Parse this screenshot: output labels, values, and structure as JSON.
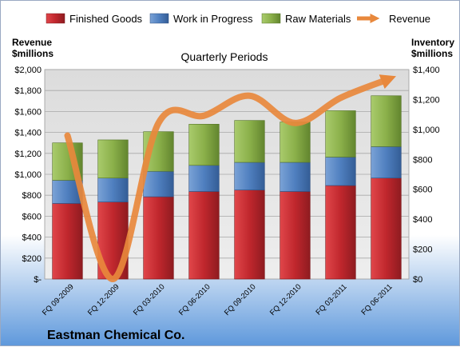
{
  "chart_data": {
    "type": "bar",
    "title": "Quarterly Periods",
    "footer": "Eastman Chemical Co.",
    "categories": [
      "FQ 09-2009",
      "FQ 12-2009",
      "FQ 03-2010",
      "FQ 06-2010",
      "FQ 09-2010",
      "FQ 12-2010",
      "FQ 03-2011",
      "FQ 06-2011"
    ],
    "series": [
      {
        "name": "Finished Goods",
        "kind": "stacked-bar",
        "axis": "right",
        "color": "#c0272d",
        "values": [
          505,
          515,
          550,
          585,
          595,
          585,
          625,
          675
        ]
      },
      {
        "name": "Work in Progress",
        "kind": "stacked-bar",
        "axis": "right",
        "color": "#4f7fbf",
        "values": [
          155,
          160,
          170,
          175,
          185,
          195,
          190,
          210
        ]
      },
      {
        "name": "Raw Materials",
        "kind": "stacked-bar",
        "axis": "right",
        "color": "#8bb04a",
        "values": [
          250,
          255,
          265,
          275,
          280,
          270,
          310,
          340
        ]
      },
      {
        "name": "Revenue",
        "kind": "line",
        "axis": "left",
        "color": "#e8883c",
        "values": [
          1370,
          0,
          1490,
          1560,
          1750,
          1490,
          1730,
          1900
        ]
      }
    ],
    "left_axis": {
      "label": "Revenue $millions",
      "label_lines": [
        "Revenue",
        "$millions"
      ],
      "range": [
        0,
        2000
      ],
      "step": 200,
      "ticks": [
        "$-",
        "$200",
        "$400",
        "$600",
        "$800",
        "$1,000",
        "$1,200",
        "$1,400",
        "$1,600",
        "$1,800",
        "$2,000"
      ]
    },
    "right_axis": {
      "label": "Inventory $millions",
      "label_lines": [
        "Inventory",
        "$millions"
      ],
      "range": [
        0,
        1400
      ],
      "step": 200,
      "ticks": [
        "$0",
        "$200",
        "$400",
        "$600",
        "$800",
        "$1,000",
        "$1,200",
        "$1,400"
      ]
    },
    "legend_position": "top",
    "grid": true
  }
}
